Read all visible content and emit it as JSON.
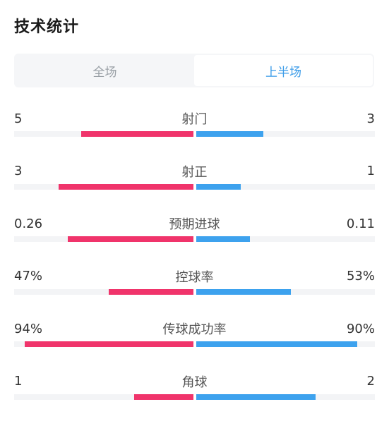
{
  "header": {
    "title": "技术统计"
  },
  "tabs": [
    {
      "label": "全场",
      "active": false
    },
    {
      "label": "上半场",
      "active": true
    }
  ],
  "colors": {
    "home": "#f0346b",
    "away": "#3da2ee",
    "active_tab": "#3a9be8"
  },
  "stats": [
    {
      "label": "射门",
      "left": "5",
      "right": "3",
      "left_fill": 0.625,
      "right_fill": 0.375
    },
    {
      "label": "射正",
      "left": "3",
      "right": "1",
      "left_fill": 0.75,
      "right_fill": 0.25
    },
    {
      "label": "预期进球",
      "left": "0.26",
      "right": "0.11",
      "left_fill": 0.7,
      "right_fill": 0.3
    },
    {
      "label": "控球率",
      "left": "47%",
      "right": "53%",
      "left_fill": 0.47,
      "right_fill": 0.53
    },
    {
      "label": "传球成功率",
      "left": "94%",
      "right": "90%",
      "left_fill": 0.94,
      "right_fill": 0.9
    },
    {
      "label": "角球",
      "left": "1",
      "right": "2",
      "left_fill": 0.33,
      "right_fill": 0.67
    }
  ]
}
